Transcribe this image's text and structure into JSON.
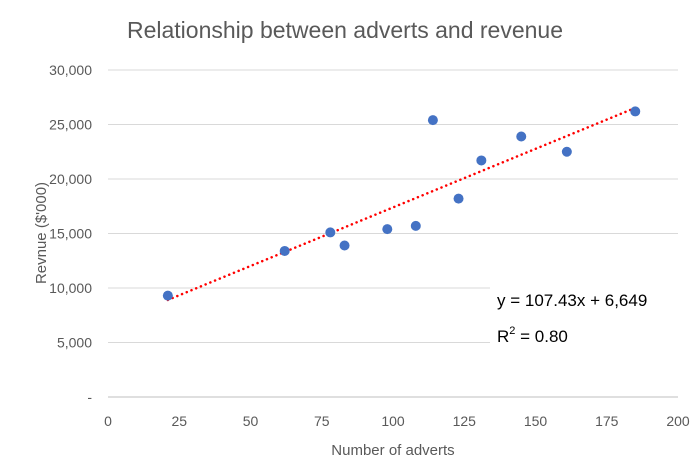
{
  "chart_data": {
    "type": "scatter",
    "title": "Relationship between adverts and revenue",
    "xlabel": "Number of adverts",
    "ylabel": "Revnue ($'000)",
    "xlim": [
      0,
      200
    ],
    "ylim": [
      0,
      30000
    ],
    "x_ticks": [
      "0",
      "25",
      "50",
      "75",
      "100",
      "125",
      "150",
      "175",
      "200"
    ],
    "y_ticks": [
      "-",
      "5,000",
      "10,000",
      "15,000",
      "20,000",
      "25,000",
      "30,000"
    ],
    "grid": "horizontal",
    "series": [
      {
        "name": "Revenue",
        "color": "#4472c4",
        "x": [
          21,
          62,
          78,
          83,
          98,
          108,
          114,
          123,
          131,
          145,
          161,
          185
        ],
        "y": [
          9300,
          13400,
          15100,
          13900,
          15400,
          15700,
          25400,
          18200,
          21700,
          23900,
          22500,
          26200
        ]
      }
    ],
    "trendline": {
      "type": "linear",
      "slope": 107.43,
      "intercept": 6649,
      "color": "#ff0000",
      "x_range": [
        21,
        185
      ],
      "equation": "y = 107.43x + 6,649",
      "r2_prefix": "R",
      "r2_sup": "2",
      "r2_suffix": " = 0.80"
    }
  }
}
